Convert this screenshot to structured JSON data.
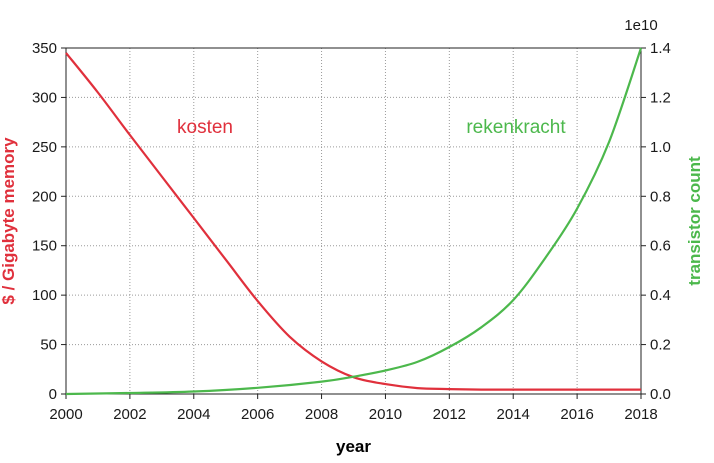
{
  "chart_data": {
    "type": "line",
    "xlabel": "year",
    "xlim": [
      2000,
      2018
    ],
    "x_ticks": [
      "2000",
      "2002",
      "2004",
      "2006",
      "2008",
      "2010",
      "2012",
      "2014",
      "2016",
      "2018"
    ],
    "y_left": {
      "label": "$ / Gigabyte memory",
      "lim": [
        0,
        350
      ],
      "ticks": [
        "0",
        "50",
        "100",
        "150",
        "200",
        "250",
        "300",
        "350"
      ],
      "color": "#e0303c"
    },
    "y_right": {
      "label": "transistor count",
      "offset_label": "1e10",
      "lim": [
        0,
        1.4
      ],
      "ticks": [
        "0.0",
        "0.2",
        "0.4",
        "0.6",
        "0.8",
        "1.0",
        "1.2",
        "1.4"
      ],
      "color": "#4cb84c"
    },
    "grid": true,
    "series": [
      {
        "name": "kosten",
        "axis": "left",
        "color": "#e0303c",
        "x": [
          2000,
          2001,
          2002,
          2003,
          2004,
          2005,
          2006,
          2007,
          2008,
          2009,
          2010,
          2011,
          2012,
          2013,
          2014,
          2015,
          2016,
          2017,
          2018
        ],
        "y": [
          345,
          305,
          262,
          220,
          178,
          136,
          94,
          58,
          33,
          17,
          10,
          6,
          5,
          4.5,
          4.5,
          4.5,
          4.5,
          4.5,
          4.5
        ]
      },
      {
        "name": "rekenkracht",
        "axis": "right",
        "color": "#4cb84c",
        "x": [
          2000,
          2002,
          2004,
          2006,
          2008,
          2009,
          2010,
          2011,
          2012,
          2013,
          2014,
          2015,
          2016,
          2017,
          2018
        ],
        "y": [
          0.0,
          0.004,
          0.01,
          0.025,
          0.05,
          0.07,
          0.095,
          0.13,
          0.19,
          0.27,
          0.38,
          0.55,
          0.75,
          1.02,
          1.4
        ]
      }
    ]
  }
}
